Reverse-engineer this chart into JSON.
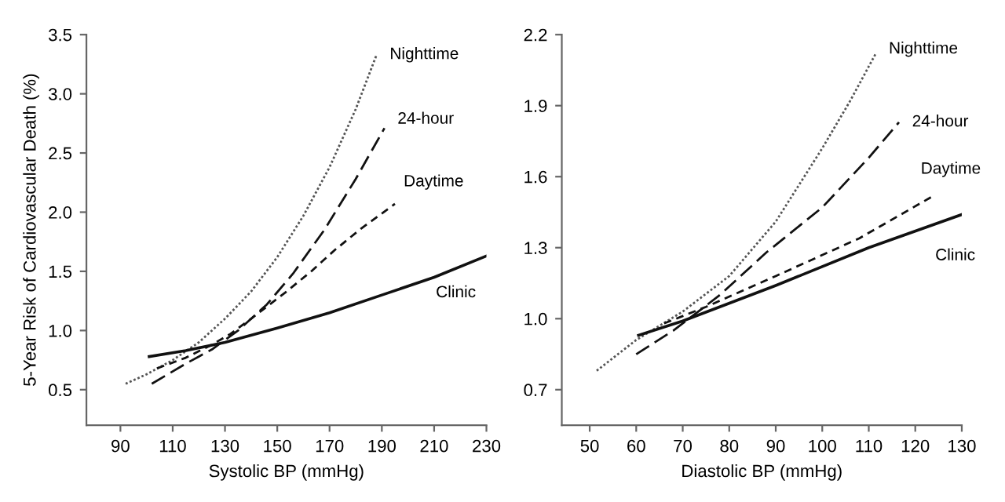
{
  "chart_data": [
    {
      "type": "line",
      "xlabel": "Systolic BP (mmHg)",
      "ylabel": "5-Year Risk of Cardiovascular Death (%)",
      "xlim": [
        77,
        230
      ],
      "ylim": [
        0.2,
        3.5
      ],
      "xticks": [
        90,
        110,
        130,
        150,
        170,
        190,
        210,
        230
      ],
      "yticks": [
        0.5,
        {
          "value": 1,
          "label": "1.0"
        },
        1.5,
        {
          "value": 2,
          "label": "2.0"
        },
        2.5,
        {
          "value": 3,
          "label": "3.0"
        },
        3.5
      ],
      "grid": false,
      "legend": false,
      "marker": "none",
      "series": [
        {
          "name": "Nighttime",
          "color": "#555555",
          "line_style": "dotted",
          "x": [
            92,
            100,
            110,
            120,
            130,
            140,
            150,
            160,
            170,
            180,
            188
          ],
          "values": [
            0.55,
            0.63,
            0.75,
            0.9,
            1.1,
            1.33,
            1.62,
            1.97,
            2.38,
            2.87,
            3.33
          ]
        },
        {
          "name": "24-hour",
          "color": "#111111",
          "line_style": "dashed",
          "x": [
            102,
            115,
            125,
            135,
            146,
            156,
            168,
            180,
            191
          ],
          "values": [
            0.55,
            0.72,
            0.84,
            1.0,
            1.22,
            1.48,
            1.85,
            2.28,
            2.71
          ]
        },
        {
          "name": "Daytime",
          "color": "#111111",
          "line_style": "dashed",
          "x": [
            104,
            115,
            125,
            132,
            140,
            153,
            163,
            172,
            182,
            195
          ],
          "values": [
            0.68,
            0.77,
            0.88,
            0.97,
            1.1,
            1.32,
            1.5,
            1.68,
            1.86,
            2.07
          ]
        },
        {
          "name": "Clinic",
          "color": "#111111",
          "line_style": "solid",
          "x": [
            101,
            115,
            130,
            150,
            170,
            190,
            210,
            230
          ],
          "values": [
            0.78,
            0.83,
            0.9,
            1.02,
            1.15,
            1.3,
            1.45,
            1.63
          ]
        }
      ]
    },
    {
      "type": "line",
      "xlabel": "Diastolic BP (mmHg)",
      "xlim": [
        44,
        130
      ],
      "ylim": [
        0.55,
        2.2
      ],
      "xticks": [
        50,
        60,
        70,
        80,
        90,
        100,
        110,
        120,
        130
      ],
      "yticks": [
        0.7,
        {
          "value": 1,
          "label": "1.0"
        },
        1.3,
        1.6,
        1.9,
        2.2
      ],
      "grid": false,
      "legend": false,
      "marker": "none",
      "series": [
        {
          "name": "Nighttime",
          "color": "#555555",
          "line_style": "dotted",
          "x": [
            51.5,
            60,
            70,
            80,
            90,
            100,
            106,
            111.5
          ],
          "values": [
            0.78,
            0.91,
            1.03,
            1.18,
            1.41,
            1.72,
            1.92,
            2.12
          ]
        },
        {
          "name": "24-hour",
          "color": "#111111",
          "line_style": "dashed",
          "x": [
            60,
            68,
            78,
            88,
            100,
            110,
            116.5
          ],
          "values": [
            0.85,
            0.95,
            1.1,
            1.28,
            1.47,
            1.68,
            1.83
          ]
        },
        {
          "name": "Daytime",
          "color": "#111111",
          "line_style": "dashed",
          "x": [
            66,
            75,
            90,
            108,
            124
          ],
          "values": [
            0.98,
            1.05,
            1.18,
            1.34,
            1.52
          ]
        },
        {
          "name": "Clinic",
          "color": "#111111",
          "line_style": "solid",
          "x": [
            60.5,
            70,
            90,
            110,
            130
          ],
          "values": [
            0.93,
            0.99,
            1.14,
            1.3,
            1.44
          ]
        }
      ]
    }
  ]
}
